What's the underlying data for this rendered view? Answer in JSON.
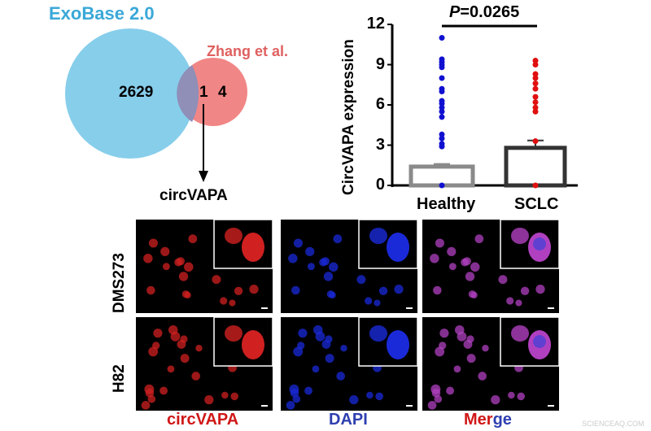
{
  "venn": {
    "set_a": {
      "name": "ExoBase 2.0",
      "only": "2629",
      "color": "#87CEEB"
    },
    "set_b": {
      "name": "Zhang et al.",
      "only": "4",
      "color": "#F08080"
    },
    "overlap": "1",
    "arrow_target": "circVAPA"
  },
  "chart_data": {
    "type": "bar",
    "categories": [
      "Healthy",
      "SCLC"
    ],
    "values": [
      1.4,
      2.8
    ],
    "error_upper": [
      1.6,
      3.35
    ],
    "points": [
      [
        0,
        2.9,
        3.1,
        3.5,
        3.8,
        5.1,
        5.5,
        5.8,
        6.1,
        6.3,
        7.0,
        7.2,
        8.0,
        8.8,
        9.0,
        9.2,
        9.4,
        11.0
      ],
      [
        0,
        3.3,
        5.5,
        5.8,
        6.2,
        6.6,
        7.2,
        7.6,
        8.0,
        8.3,
        9.0,
        9.3
      ]
    ],
    "point_colors": [
      "#1010d0",
      "#e01010"
    ],
    "bar_colors": [
      "#8a8a8a",
      "#333333"
    ],
    "ylabel": "CircVAPA expression",
    "ylim": [
      0,
      12
    ],
    "yticks": [
      "0",
      "3",
      "6",
      "9",
      "12"
    ],
    "annotation": {
      "p_label": "P",
      "p_value": "=0.0265"
    }
  },
  "microscopy": {
    "rows": [
      "DMS273",
      "H82"
    ],
    "columns": [
      {
        "label": "circVAPA",
        "color": "#d01818"
      },
      {
        "label": "DAPI",
        "color": "#2f3fb0"
      },
      {
        "label_part1": "Mer",
        "label_part2": "ge",
        "color1": "#d01818",
        "color2": "#2f3fb0"
      }
    ]
  },
  "watermark": "SCIENCEAQ.COM"
}
